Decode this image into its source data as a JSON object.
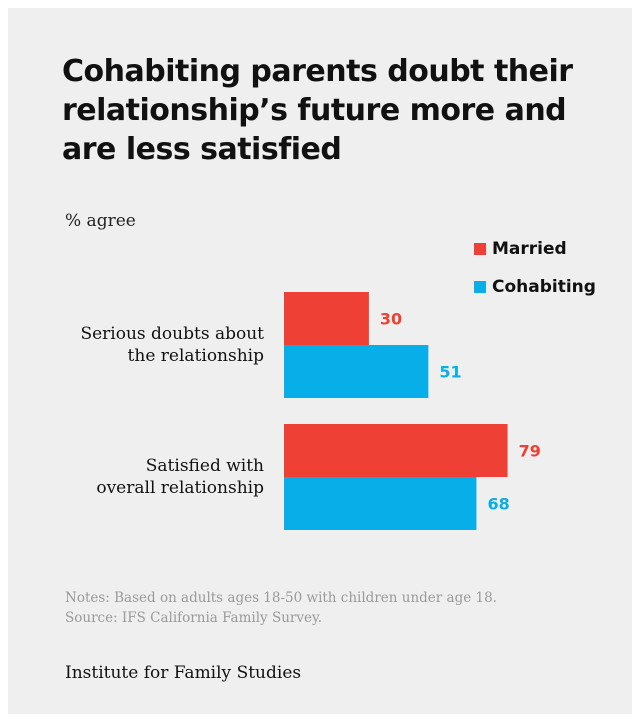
{
  "title": "Cohabiting parents doubt their relationship’s future more and are less satisfied",
  "subtitle": "% agree",
  "notes": "Notes: Based on adults ages 18-50 with children under age 18.",
  "source": "Source: IFS California Family Survey.",
  "brand": "Institute for Family Studies",
  "chart_data": {
    "type": "bar",
    "orientation": "horizontal",
    "categories": [
      [
        "Serious doubts about",
        "the relationship"
      ],
      [
        "Satisfied with",
        "overall relationship"
      ]
    ],
    "series": [
      {
        "name": "Married",
        "color": "#ee4035",
        "values": [
          30,
          79
        ]
      },
      {
        "name": "Cohabiting",
        "color": "#08aee8",
        "values": [
          51,
          68
        ]
      }
    ],
    "title": "Cohabiting parents doubt their relationship’s future more and are less satisfied",
    "ylabel": "% agree",
    "xlim": [
      0,
      100
    ],
    "grid": false,
    "legend_position": "top-right",
    "data_labels": true
  }
}
